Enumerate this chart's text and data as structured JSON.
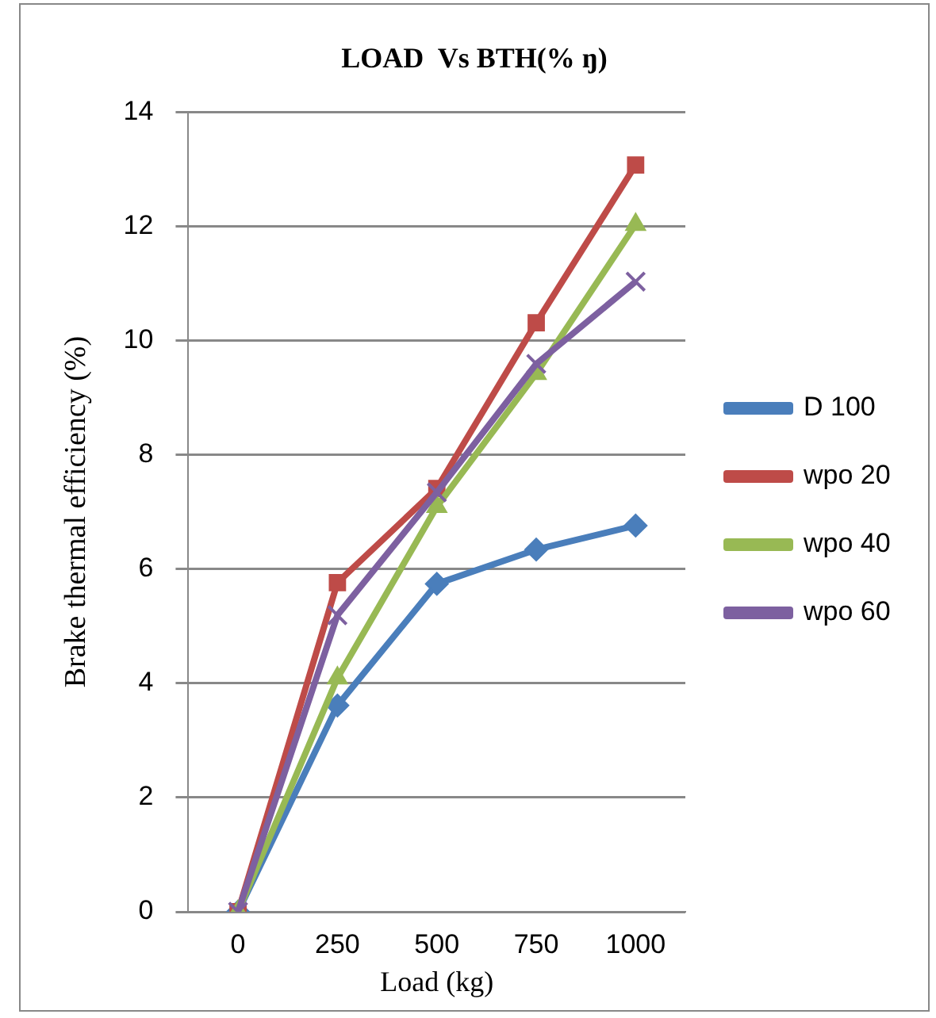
{
  "chart_data": {
    "type": "line",
    "title": "LOAD  Vs BTH(% ŋ)",
    "xlabel": "Load (kg)",
    "ylabel": "Brake thermal efficiency (%)",
    "categories": [
      "0",
      "250",
      "500",
      "750",
      "1000"
    ],
    "series": [
      {
        "name": "D 100",
        "color": "#4a7ebb",
        "marker": "diamond",
        "values": [
          0,
          3.61,
          5.74,
          6.34,
          6.76
        ]
      },
      {
        "name": "wpo 20",
        "color": "#be4b48",
        "marker": "square",
        "values": [
          0,
          5.76,
          7.41,
          10.31,
          13.07
        ]
      },
      {
        "name": "wpo 40",
        "color": "#98b954",
        "marker": "triangle",
        "values": [
          0,
          4.09,
          7.09,
          9.42,
          12.03
        ]
      },
      {
        "name": "wpo 60",
        "color": "#7d60a0",
        "marker": "cross",
        "values": [
          0,
          5.19,
          7.34,
          9.59,
          11.03
        ]
      }
    ],
    "ylim": [
      0,
      14
    ],
    "yticks": [
      0,
      2,
      4,
      6,
      8,
      10,
      12,
      14
    ],
    "grid": "y",
    "legend": "right",
    "line_style": "solid"
  }
}
